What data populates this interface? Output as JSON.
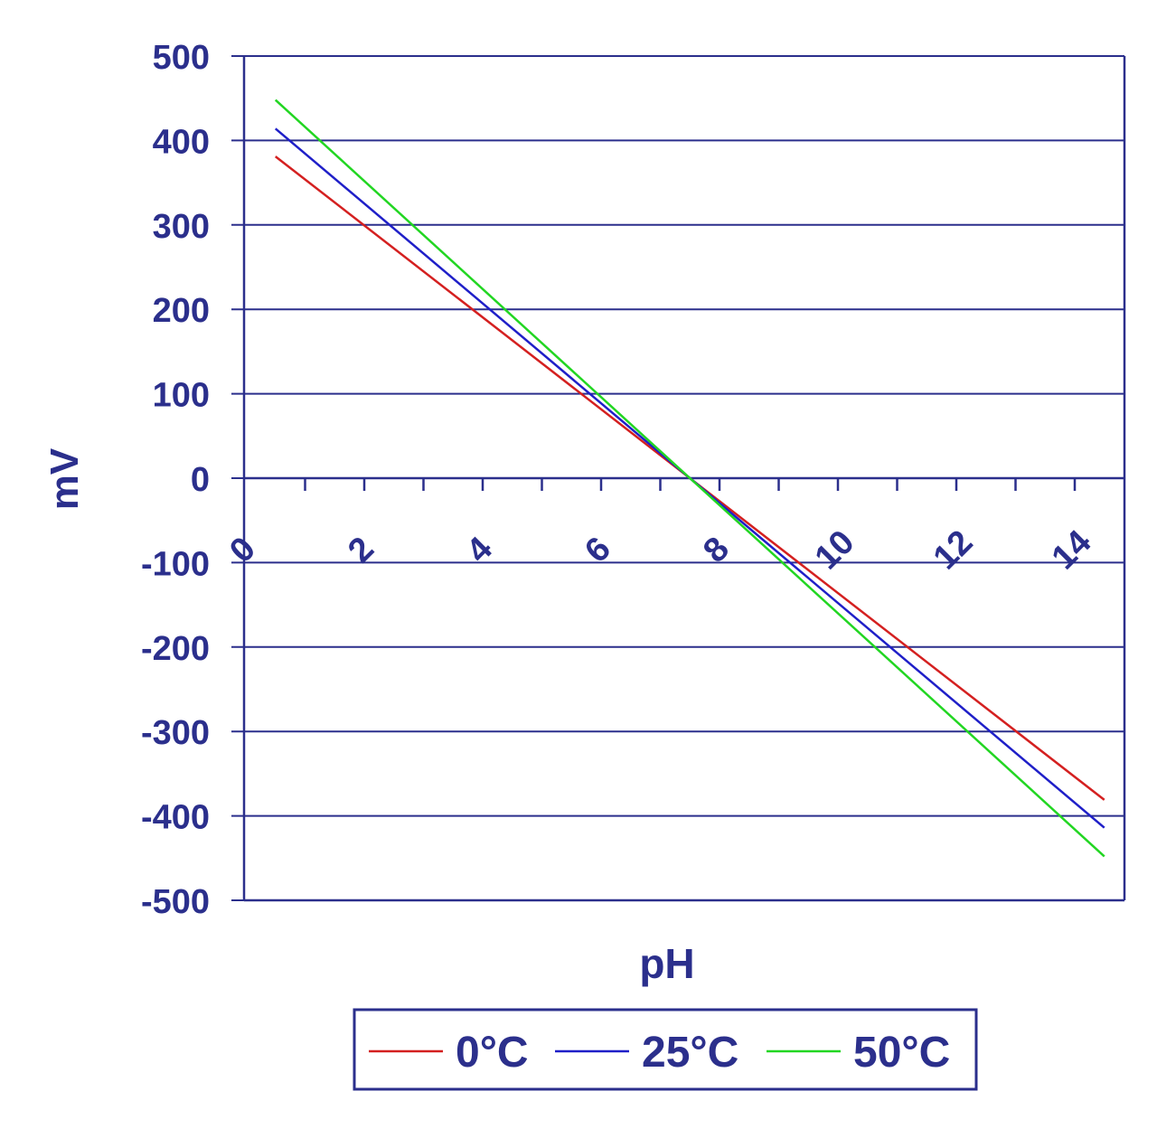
{
  "colors": {
    "axis": "#2B2F8C",
    "text": "#2B2F8C",
    "grid": "#2B2F8C"
  },
  "chart_data": {
    "type": "line",
    "xlabel": "pH",
    "ylabel": "mV",
    "xlim": [
      0,
      15
    ],
    "ylim": [
      -500,
      500
    ],
    "x_ticks": [
      0,
      2,
      4,
      6,
      8,
      10,
      12,
      14
    ],
    "y_ticks": [
      500,
      400,
      300,
      200,
      100,
      0,
      -100,
      -200,
      -300,
      -400,
      -500
    ],
    "grid": "horizontal",
    "legend_position": "bottom",
    "series": [
      {
        "name": "0°C",
        "color": "#D42020",
        "x": [
          0.5,
          14.5
        ],
        "y": [
          381,
          -381
        ]
      },
      {
        "name": "25°C",
        "color": "#1F1FC8",
        "x": [
          0.5,
          14.5
        ],
        "y": [
          414,
          -414
        ]
      },
      {
        "name": "50°C",
        "color": "#22D622",
        "x": [
          0.5,
          14.5
        ],
        "y": [
          448,
          -448
        ]
      }
    ]
  }
}
